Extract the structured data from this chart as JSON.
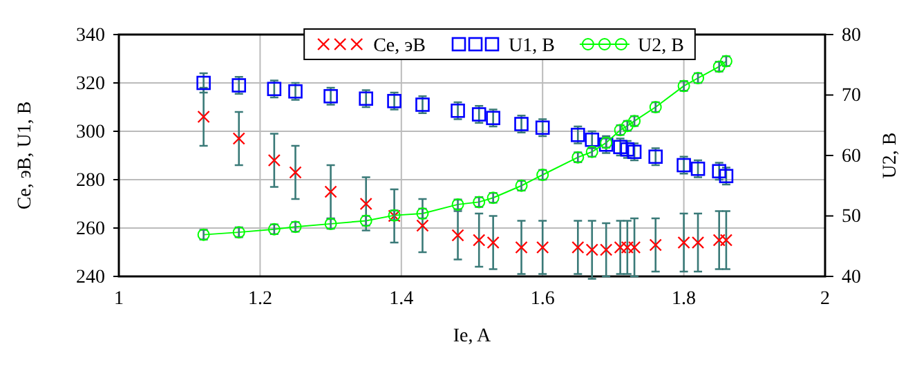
{
  "chart_data": {
    "type": "scatter",
    "xlabel": "Ie, A",
    "ylabel": "Ce, эВ, U1, В",
    "y2label": "U2, В",
    "x": [
      1.12,
      1.17,
      1.22,
      1.25,
      1.3,
      1.35,
      1.39,
      1.43,
      1.48,
      1.51,
      1.53,
      1.57,
      1.6,
      1.65,
      1.67,
      1.69,
      1.71,
      1.72,
      1.73,
      1.76,
      1.8,
      1.82,
      1.85,
      1.86
    ],
    "series": [
      {
        "name": "Ce, эВ",
        "color": "#ff0000",
        "marker": "cross",
        "values": [
          306,
          297,
          288,
          283,
          275,
          270,
          265,
          261,
          257,
          255,
          254,
          252,
          252,
          252,
          251,
          251,
          252,
          252,
          252,
          253,
          254,
          254,
          255,
          255
        ],
        "errors": [
          12,
          11,
          11,
          11,
          11,
          11,
          11,
          11,
          10,
          11,
          11,
          11,
          11,
          11,
          12,
          11,
          11,
          11,
          12,
          11,
          12,
          12,
          12,
          12
        ]
      },
      {
        "name": "U1, В",
        "color": "#0000ff",
        "marker": "square",
        "values": [
          320,
          319,
          317.5,
          316.5,
          314.5,
          313.5,
          312.5,
          311,
          308.5,
          307,
          305.5,
          303,
          301.5,
          298.5,
          296.5,
          294.5,
          293.5,
          292.5,
          291.5,
          289.5,
          286,
          284.5,
          283.5,
          281.5
        ],
        "errors": [
          4,
          3.5,
          3.5,
          3.5,
          3.5,
          3.5,
          3.5,
          3.5,
          3.5,
          3.5,
          3.5,
          3.5,
          3.5,
          3.5,
          3.5,
          3.5,
          3.5,
          3.5,
          3.5,
          3.5,
          3.5,
          3.5,
          3.5,
          3.5
        ]
      },
      {
        "name": "U2, В",
        "color": "#00ff00",
        "type": "line",
        "marker": "circle",
        "axis": "y2",
        "values": [
          46.9,
          47.3,
          47.8,
          48.2,
          48.7,
          49.2,
          50.1,
          50.4,
          51.9,
          52.3,
          53,
          55,
          56.8,
          59.7,
          60.6,
          62.1,
          64.2,
          64.9,
          65.7,
          68,
          71.5,
          72.8,
          74.7,
          75.6
        ],
        "errors": [
          0.8,
          0.8,
          0.8,
          0.8,
          0.8,
          0.8,
          0.8,
          0.8,
          0.8,
          0.8,
          0.8,
          0.8,
          0.8,
          0.8,
          0.8,
          0.8,
          0.8,
          0.8,
          0.8,
          0.8,
          0.8,
          0.8,
          0.8,
          0.8
        ]
      }
    ],
    "xlim": [
      1,
      2
    ],
    "xticks": [
      1,
      1.2,
      1.4,
      1.6,
      1.8,
      2
    ],
    "ylim": [
      240,
      340
    ],
    "yticks": [
      240,
      260,
      280,
      300,
      320,
      340
    ],
    "y2lim": [
      40,
      80
    ],
    "y2ticks": [
      40,
      50,
      60,
      70,
      80
    ],
    "grid": true,
    "legend": "top"
  }
}
